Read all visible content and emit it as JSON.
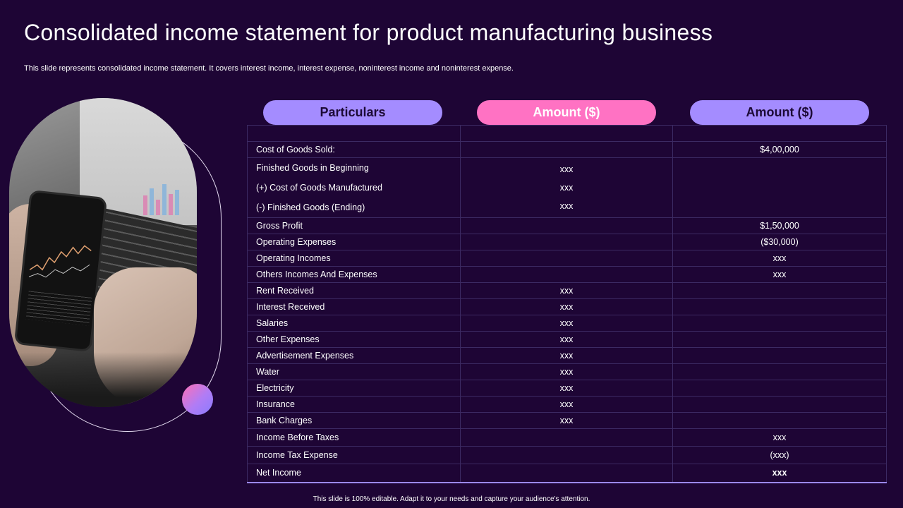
{
  "slide": {
    "title": "Consolidated income statement for product manufacturing business",
    "subtitle": "This slide represents consolidated income statement. It covers interest income, interest expense, noninterest income and noninterest expense.",
    "footer": "This slide is 100% editable. Adapt it to your needs and capture your audience's attention."
  },
  "headers": [
    "Particulars",
    "Amount ($)",
    "Amount ($)"
  ],
  "rows": [
    {
      "label": "",
      "amount1": "",
      "amount2": ""
    },
    {
      "label": "Cost of Goods Sold:",
      "amount1": "",
      "amount2": "$4,00,000"
    },
    {
      "label": "Finished Goods in Beginning",
      "amount1": "xxx",
      "amount2": ""
    },
    {
      "label": "(+) Cost of Goods Manufactured",
      "amount1": "xxx",
      "amount2": ""
    },
    {
      "label": "(-) Finished Goods (Ending)",
      "amount1": "xxx",
      "amount2": ""
    },
    {
      "label": "Gross Profit",
      "amount1": "",
      "amount2": "$1,50,000"
    },
    {
      "label": "Operating Expenses",
      "amount1": "",
      "amount2": "($30,000)"
    },
    {
      "label": "Operating Incomes",
      "amount1": "",
      "amount2": "xxx"
    },
    {
      "label": "Others Incomes And Expenses",
      "amount1": "",
      "amount2": "xxx"
    },
    {
      "label": "Rent Received",
      "amount1": "xxx",
      "amount2": ""
    },
    {
      "label": "Interest Received",
      "amount1": "xxx",
      "amount2": ""
    },
    {
      "label": "Salaries",
      "amount1": "xxx",
      "amount2": ""
    },
    {
      "label": "Other Expenses",
      "amount1": "xxx",
      "amount2": ""
    },
    {
      "label": "Advertisement Expenses",
      "amount1": "xxx",
      "amount2": ""
    },
    {
      "label": "Water",
      "amount1": "xxx",
      "amount2": ""
    },
    {
      "label": "Electricity",
      "amount1": "xxx",
      "amount2": ""
    },
    {
      "label": "Insurance",
      "amount1": "xxx",
      "amount2": ""
    },
    {
      "label": "Bank Charges",
      "amount1": "xxx",
      "amount2": ""
    },
    {
      "label": "Income Before Taxes",
      "amount1": "",
      "amount2": "xxx"
    },
    {
      "label": "Income Tax Expense",
      "amount1": "",
      "amount2": "(xxx)"
    },
    {
      "label": "Net Income",
      "amount1": "",
      "amount2": "xxx"
    }
  ],
  "colors": {
    "background": "#1e0535",
    "pill_purple": "#a48cff",
    "pill_pink": "#ff72c3",
    "grid": "#3c2a63"
  },
  "images": {
    "photo": "hand-holding-phone-with-stock-chart-over-laptop"
  }
}
